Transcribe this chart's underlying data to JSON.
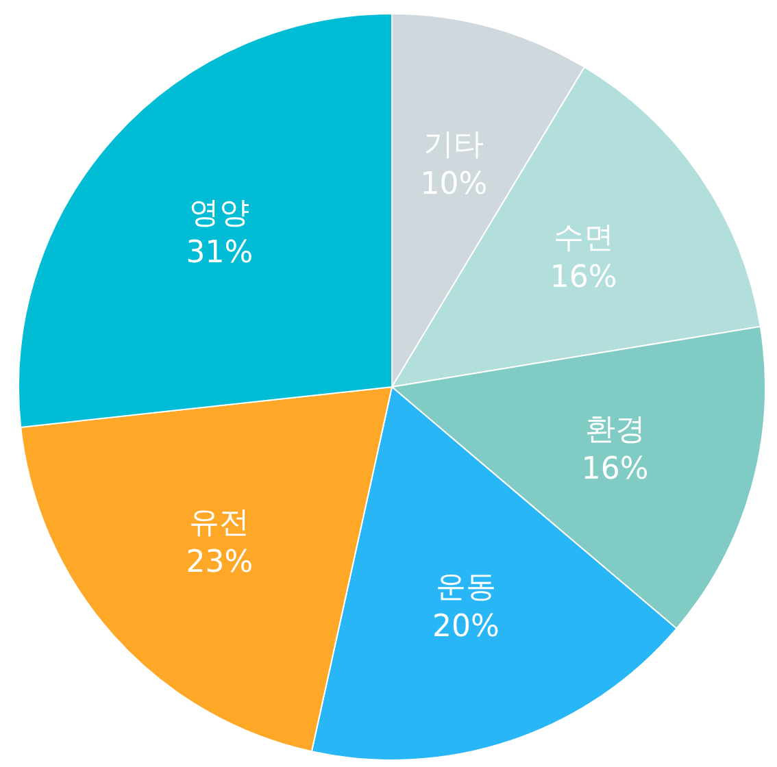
{
  "chart_data": {
    "type": "pie",
    "categories": [
      "기타",
      "수면",
      "환경",
      "운동",
      "유전",
      "영양"
    ],
    "values": [
      10,
      16,
      16,
      20,
      23,
      31
    ],
    "value_labels": [
      "10%",
      "16%",
      "16%",
      "20%",
      "23%",
      "31%"
    ],
    "colors": [
      "#cfd8dc",
      "#b2dfdb",
      "#80cbc4",
      "#29b6f6",
      "#ffa726",
      "#00bcd4"
    ],
    "legend": false
  }
}
